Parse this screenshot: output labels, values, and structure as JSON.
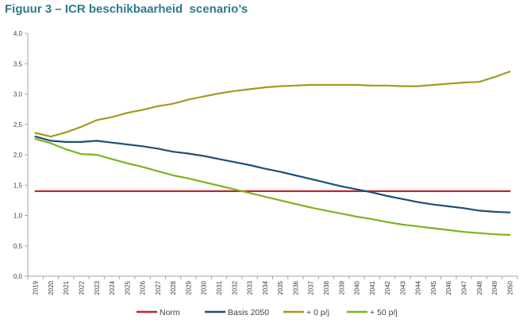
{
  "title": "Figuur 3 – ICR beschikbaarheid  scenario’s",
  "chart_data": {
    "type": "line",
    "x": [
      "2019",
      "2020",
      "2021",
      "2022",
      "2023",
      "2024",
      "2025",
      "2026",
      "2027",
      "2028",
      "2029",
      "2030",
      "2031",
      "2032",
      "2033",
      "2034",
      "2035",
      "2036",
      "2037",
      "2038",
      "2039",
      "2040",
      "2041",
      "2042",
      "2043",
      "2044",
      "2045",
      "2046",
      "2047",
      "2048",
      "2049",
      "2050"
    ],
    "ylim": [
      0,
      4.0
    ],
    "yticks": [
      0,
      0.5,
      1.0,
      1.5,
      2.0,
      2.5,
      3.0,
      3.5,
      4.0
    ],
    "ytick_labels": [
      "0,0",
      "0,5",
      "1,0",
      "1,5",
      "2,0",
      "2,5",
      "3,0",
      "3,5",
      "4,0"
    ],
    "grid": false,
    "legend_position": "bottom",
    "series": [
      {
        "name": "Norm",
        "color": "#c0272d",
        "values": [
          1.4,
          1.4,
          1.4,
          1.4,
          1.4,
          1.4,
          1.4,
          1.4,
          1.4,
          1.4,
          1.4,
          1.4,
          1.4,
          1.4,
          1.4,
          1.4,
          1.4,
          1.4,
          1.4,
          1.4,
          1.4,
          1.4,
          1.4,
          1.4,
          1.4,
          1.4,
          1.4,
          1.4,
          1.4,
          1.4,
          1.4,
          1.4
        ]
      },
      {
        "name": "Basis 2050",
        "color": "#1f4e79",
        "values": [
          2.3,
          2.23,
          2.21,
          2.21,
          2.23,
          2.2,
          2.17,
          2.14,
          2.1,
          2.05,
          2.02,
          1.98,
          1.93,
          1.88,
          1.83,
          1.77,
          1.72,
          1.66,
          1.6,
          1.54,
          1.48,
          1.43,
          1.38,
          1.32,
          1.27,
          1.22,
          1.18,
          1.15,
          1.12,
          1.08,
          1.06,
          1.05
        ]
      },
      {
        "name": "+ 0 p/j",
        "color": "#a39a1e",
        "values": [
          2.36,
          2.3,
          2.37,
          2.46,
          2.57,
          2.62,
          2.69,
          2.74,
          2.8,
          2.84,
          2.91,
          2.96,
          3.01,
          3.05,
          3.08,
          3.11,
          3.13,
          3.14,
          3.15,
          3.15,
          3.15,
          3.15,
          3.14,
          3.14,
          3.13,
          3.13,
          3.15,
          3.17,
          3.19,
          3.2,
          3.28,
          3.37
        ]
      },
      {
        "name": "+ 50 p/j",
        "color": "#7fb21d",
        "values": [
          2.26,
          2.19,
          2.09,
          2.01,
          2.0,
          1.93,
          1.86,
          1.8,
          1.73,
          1.66,
          1.61,
          1.55,
          1.49,
          1.43,
          1.37,
          1.31,
          1.25,
          1.19,
          1.13,
          1.08,
          1.03,
          0.98,
          0.94,
          0.89,
          0.85,
          0.82,
          0.79,
          0.76,
          0.73,
          0.71,
          0.69,
          0.68
        ]
      }
    ]
  }
}
